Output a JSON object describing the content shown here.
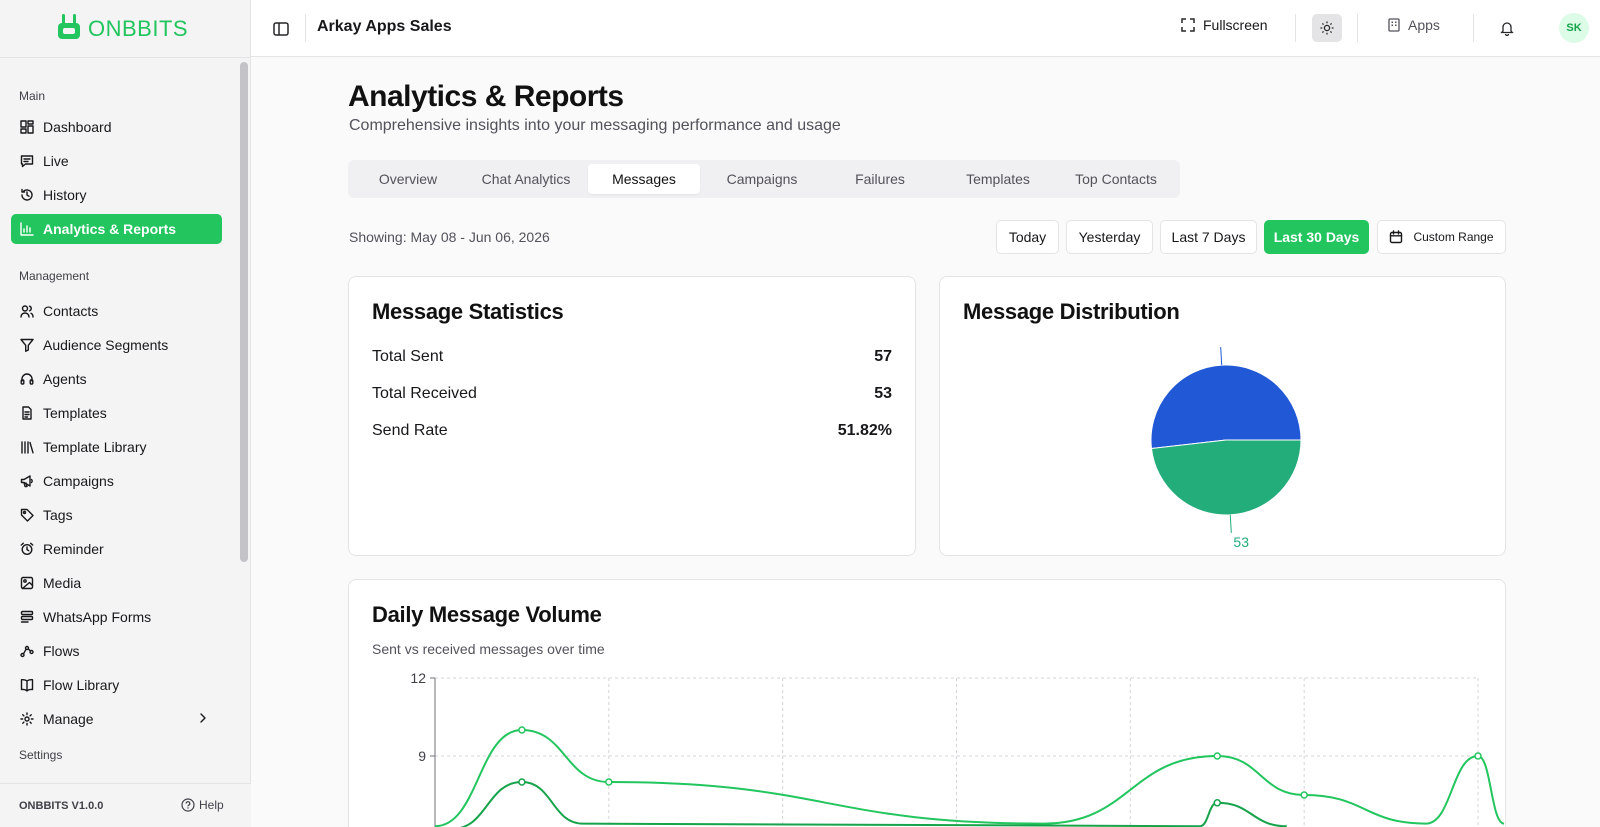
{
  "brand": {
    "name": "ONBBITS",
    "accent": "#22c55e"
  },
  "sidebar": {
    "sections": {
      "main": "Main",
      "management": "Management",
      "settings": "Settings"
    },
    "main_items": [
      {
        "label": "Dashboard",
        "icon": "dashboard-icon"
      },
      {
        "label": "Live",
        "icon": "chat-icon"
      },
      {
        "label": "History",
        "icon": "history-icon"
      },
      {
        "label": "Analytics & Reports",
        "icon": "bar-chart-icon",
        "active": true
      }
    ],
    "management_items": [
      {
        "label": "Contacts",
        "icon": "users-icon"
      },
      {
        "label": "Audience Segments",
        "icon": "filter-icon"
      },
      {
        "label": "Agents",
        "icon": "headset-icon"
      },
      {
        "label": "Templates",
        "icon": "document-icon"
      },
      {
        "label": "Template Library",
        "icon": "library-icon"
      },
      {
        "label": "Campaigns",
        "icon": "megaphone-icon"
      },
      {
        "label": "Tags",
        "icon": "tag-icon"
      },
      {
        "label": "Reminder",
        "icon": "alarm-icon"
      },
      {
        "label": "Media",
        "icon": "image-icon"
      },
      {
        "label": "WhatsApp Forms",
        "icon": "form-icon"
      },
      {
        "label": "Flows",
        "icon": "workflow-icon"
      },
      {
        "label": "Flow Library",
        "icon": "book-icon"
      },
      {
        "label": "Manage",
        "icon": "gear-icon"
      }
    ],
    "version": "ONBBITS V1.0.0",
    "help": "Help"
  },
  "header": {
    "title": "Arkay Apps Sales",
    "fullscreen": "Fullscreen",
    "apps": "Apps",
    "avatar_initials": "SK"
  },
  "page": {
    "title": "Analytics & Reports",
    "subtitle": "Comprehensive insights into your messaging performance and usage",
    "tabs": [
      "Overview",
      "Chat Analytics",
      "Messages",
      "Campaigns",
      "Failures",
      "Templates",
      "Top Contacts"
    ],
    "active_tab": "Messages",
    "showing": "Showing: May 08 - Jun 06, 2026",
    "ranges": [
      "Today",
      "Yesterday",
      "Last 7 Days",
      "Last 30 Days",
      "Custom Range"
    ],
    "active_range": "Last 30 Days"
  },
  "stats": {
    "title": "Message Statistics",
    "rows": [
      {
        "label": "Total Sent",
        "value": "57"
      },
      {
        "label": "Total Received",
        "value": "53"
      },
      {
        "label": "Send Rate",
        "value": "51.82%"
      }
    ]
  },
  "distribution": {
    "title": "Message Distribution"
  },
  "volume": {
    "title": "Daily Message Volume",
    "subtitle": "Sent vs received messages over time"
  },
  "chart_data": [
    {
      "type": "pie",
      "title": "Message Distribution",
      "slices": [
        {
          "value": 57,
          "color": "#2158d6"
        },
        {
          "value": 53,
          "color": "#22ad7a"
        }
      ],
      "data_labels": [
        "53"
      ]
    },
    {
      "type": "line",
      "title": "Daily Message Volume",
      "yticks": [
        9,
        12
      ],
      "ylim": [
        6,
        12
      ],
      "grid": true,
      "series": [
        {
          "color": "#22c55e",
          "points": [
            [
              0,
              6.3
            ],
            [
              0.5,
              10
            ],
            [
              1,
              8
            ],
            [
              3.5,
              6.4
            ],
            [
              4.5,
              9
            ],
            [
              5,
              7.5
            ],
            [
              5.7,
              6.4
            ],
            [
              6,
              9
            ],
            [
              6.15,
              6.4
            ]
          ]
        },
        {
          "color": "#16a34a",
          "points": [
            [
              0.1,
              6.2
            ],
            [
              0.5,
              8
            ],
            [
              0.85,
              6.4
            ],
            [
              4.4,
              6.3
            ],
            [
              4.5,
              7.2
            ],
            [
              4.9,
              6.3
            ]
          ]
        }
      ]
    }
  ]
}
